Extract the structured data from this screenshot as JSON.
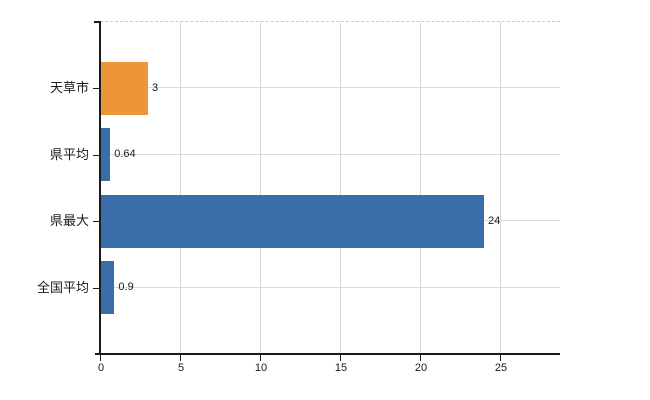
{
  "chart_data": {
    "type": "bar",
    "orientation": "horizontal",
    "title": "",
    "xlabel": "",
    "ylabel": "",
    "categories": [
      "天草市",
      "県平均",
      "県最大",
      "全国平均"
    ],
    "values": [
      3,
      0.64,
      24,
      0.9
    ],
    "value_labels": [
      "3",
      "0.64",
      "24",
      "0.9"
    ],
    "bar_colors": [
      "#ED9539",
      "#3A6EAA",
      "#3A6EAA",
      "#3A6EAA"
    ],
    "xlim": [
      0,
      28.75
    ],
    "xticks": [
      0,
      5,
      10,
      15,
      20,
      25
    ],
    "xtick_labels": [
      "0",
      "5",
      "10",
      "15",
      "20",
      "25"
    ],
    "grid": true,
    "legend": false
  },
  "colors": {
    "background": "#ffffff",
    "axis": "#1a1a1a",
    "text": "#1a1a1a",
    "grid_horizontal": "#d8ded6",
    "grid_vertical": "#d6d6d6",
    "plot_top_dashed": "#c9c9c9",
    "bar_blue": "#3A6EAA",
    "bar_orange": "#ED9539"
  }
}
